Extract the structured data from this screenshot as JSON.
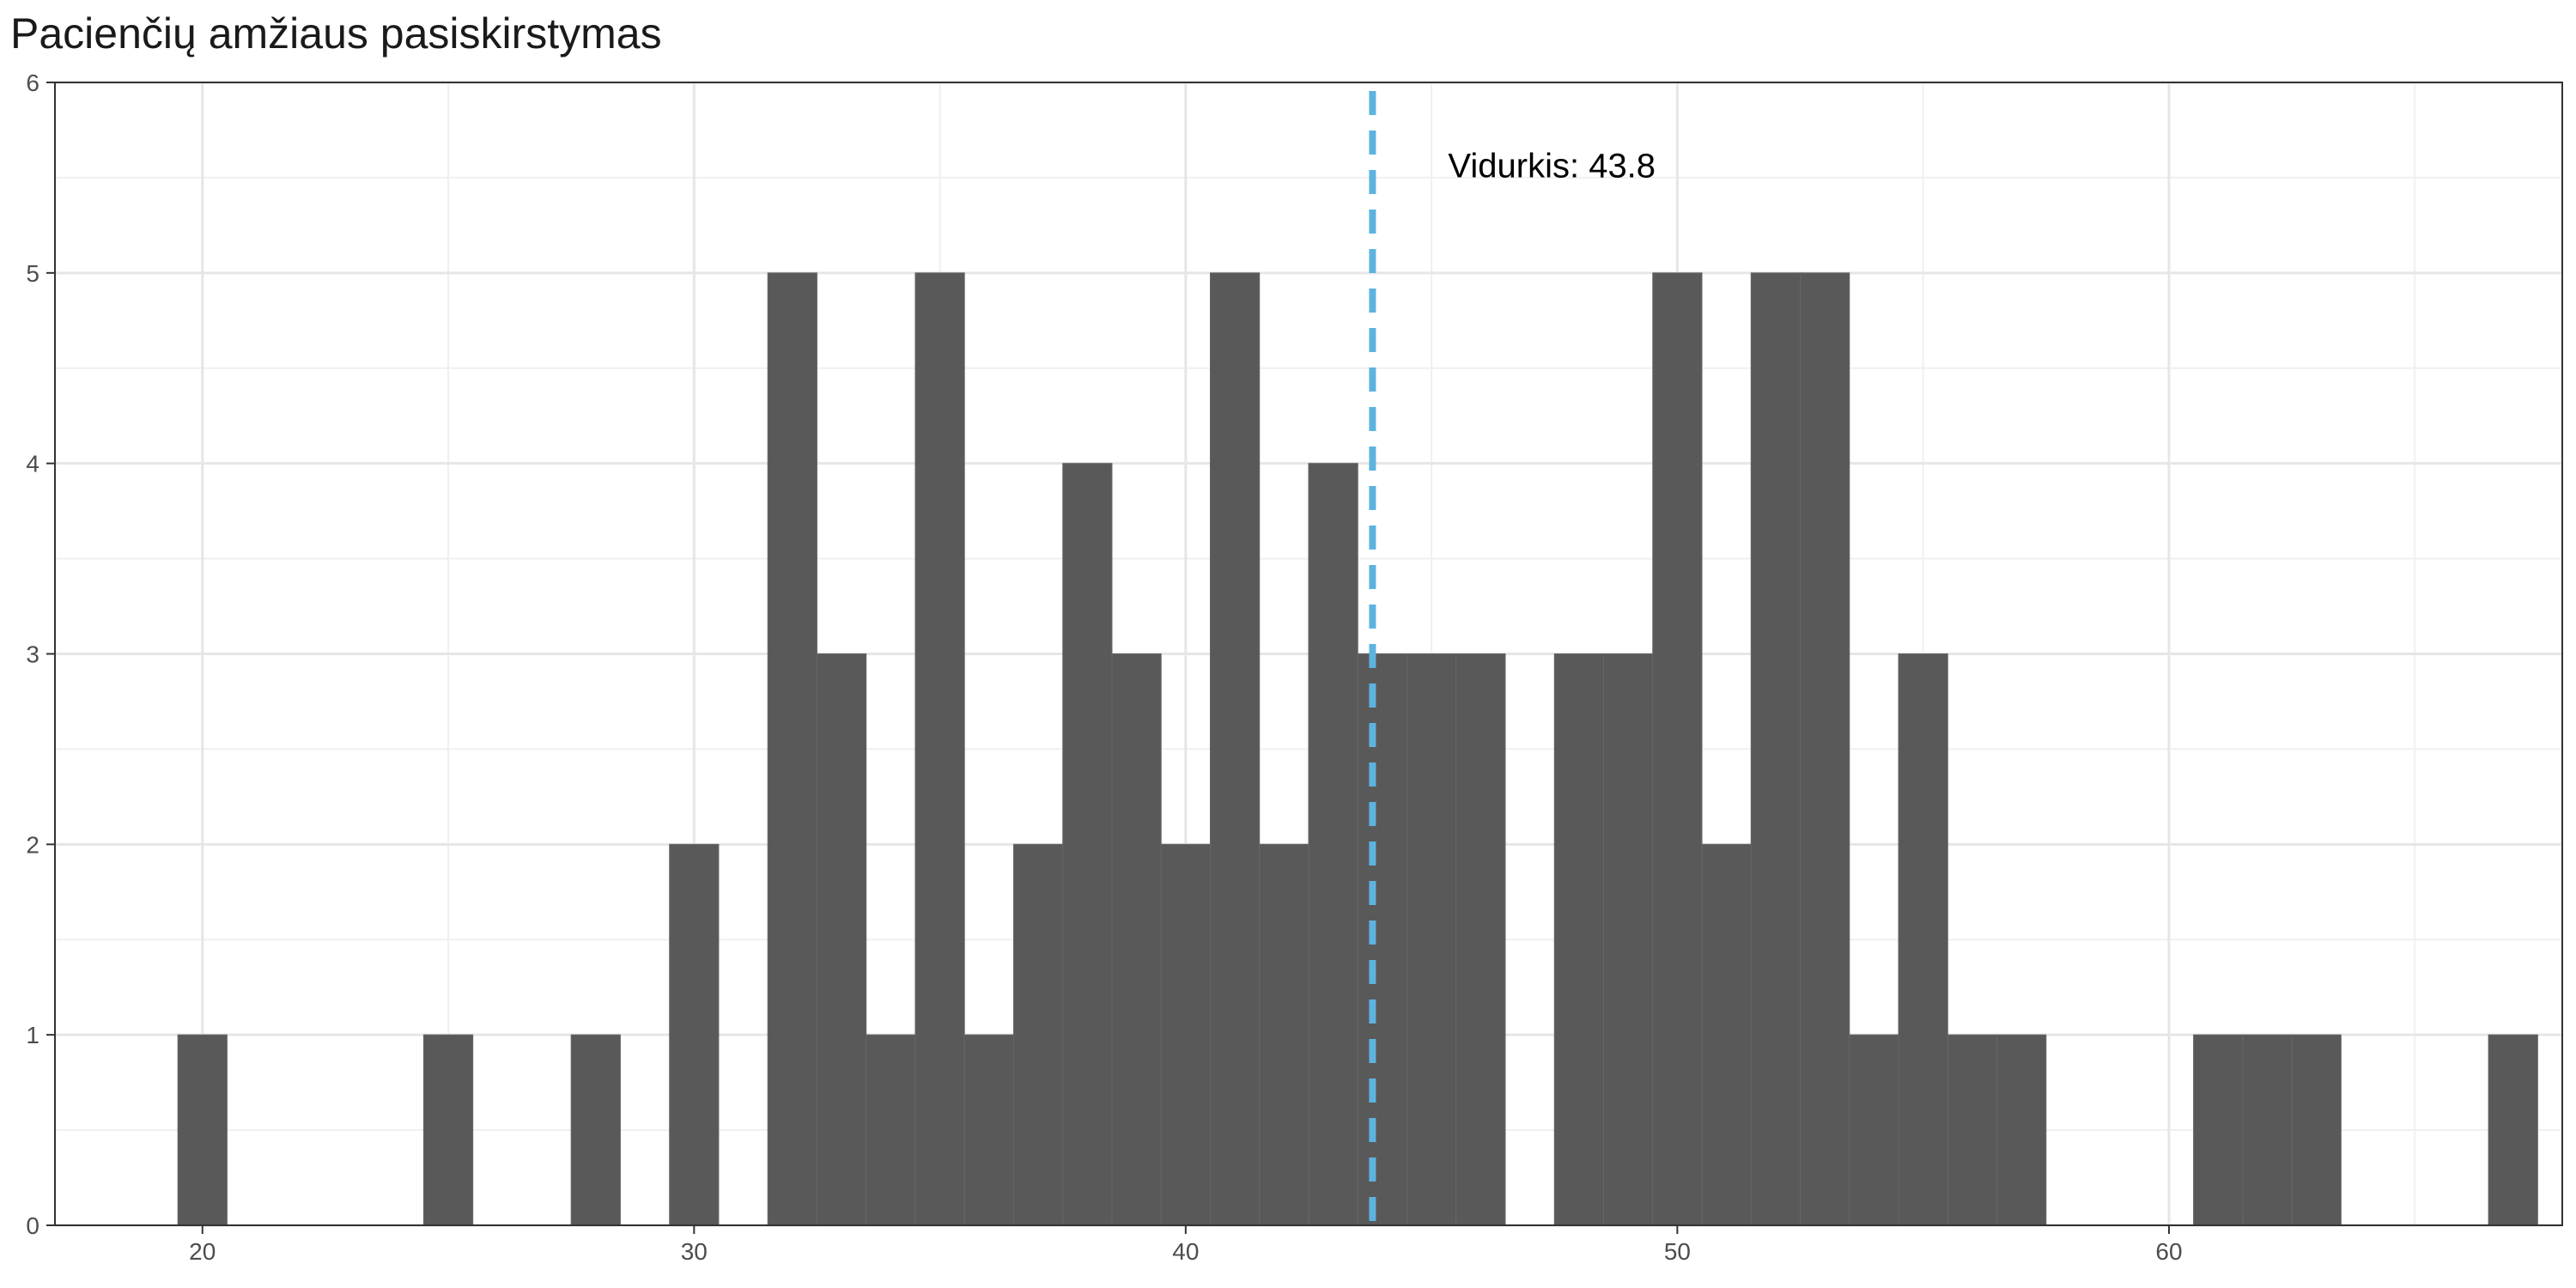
{
  "chart_data": {
    "type": "bar",
    "title": "Pacienčių amžiaus pasiskirstymas",
    "xlabel": "",
    "ylabel": "",
    "xlim": [
      17,
      68
    ],
    "ylim": [
      0,
      6
    ],
    "x_ticks": [
      20,
      30,
      40,
      50,
      60
    ],
    "y_ticks": [
      0,
      1,
      2,
      3,
      4,
      5,
      6
    ],
    "grid": true,
    "bin_width": 1,
    "bins": [
      {
        "x": 20,
        "count": 1
      },
      {
        "x": 25,
        "count": 1
      },
      {
        "x": 28,
        "count": 1
      },
      {
        "x": 30,
        "count": 2
      },
      {
        "x": 32,
        "count": 5
      },
      {
        "x": 33,
        "count": 3
      },
      {
        "x": 34,
        "count": 1
      },
      {
        "x": 35,
        "count": 5
      },
      {
        "x": 36,
        "count": 1
      },
      {
        "x": 37,
        "count": 2
      },
      {
        "x": 38,
        "count": 4
      },
      {
        "x": 39,
        "count": 3
      },
      {
        "x": 40,
        "count": 2
      },
      {
        "x": 41,
        "count": 5
      },
      {
        "x": 42,
        "count": 2
      },
      {
        "x": 43,
        "count": 4
      },
      {
        "x": 44,
        "count": 3
      },
      {
        "x": 45,
        "count": 3
      },
      {
        "x": 46,
        "count": 3
      },
      {
        "x": 48,
        "count": 3
      },
      {
        "x": 49,
        "count": 3
      },
      {
        "x": 50,
        "count": 5
      },
      {
        "x": 51,
        "count": 2
      },
      {
        "x": 52,
        "count": 5
      },
      {
        "x": 53,
        "count": 5
      },
      {
        "x": 54,
        "count": 1
      },
      {
        "x": 55,
        "count": 3
      },
      {
        "x": 56,
        "count": 1
      },
      {
        "x": 57,
        "count": 1
      },
      {
        "x": 61,
        "count": 1
      },
      {
        "x": 62,
        "count": 1
      },
      {
        "x": 63,
        "count": 1
      },
      {
        "x": 67,
        "count": 1
      }
    ],
    "mean_line": {
      "value": 43.8,
      "label": "Vidurkis:  43.8",
      "color": "#5DB3E0"
    },
    "bar_color": "#595959"
  }
}
